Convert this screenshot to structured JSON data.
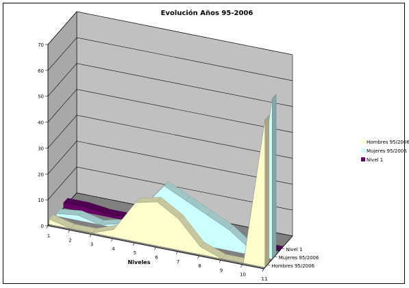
{
  "chart_data": {
    "type": "area",
    "title": "Evolución Años 95-2006",
    "xlabel": "Niveles",
    "ylabel": "",
    "ylim": [
      0,
      70
    ],
    "yticks": [
      0,
      10,
      20,
      30,
      40,
      50,
      60,
      70
    ],
    "categories": [
      "1",
      "2",
      "3",
      "4",
      "5",
      "6",
      "7",
      "8",
      "9",
      "10",
      "11"
    ],
    "series": [
      {
        "name": "Nivel 1",
        "color": "#660066",
        "values": [
          2,
          2,
          1,
          1,
          0,
          0,
          0,
          0,
          0,
          0,
          0
        ]
      },
      {
        "name": "Mujeres 95/2006",
        "color": "#ccffff",
        "values": [
          1,
          2,
          0,
          2,
          10,
          20,
          16,
          12,
          8,
          2,
          62
        ]
      },
      {
        "name": "Hombres 95/2006",
        "color": "#ffffcc",
        "values": [
          2,
          0,
          0,
          3,
          15,
          17,
          12,
          3,
          0,
          0,
          57
        ]
      }
    ],
    "legend": [
      {
        "name": "Hombres 95/2006",
        "color": "#ffffcc"
      },
      {
        "name": "Mujeres 95/2006",
        "color": "#ccffff"
      },
      {
        "name": "Nivel 1",
        "color": "#660066"
      }
    ],
    "depth_labels": [
      "Nivel 1",
      "Mujeres 95/2006",
      "Hombres 95/2006"
    ],
    "grid": true,
    "legend_position": "right",
    "wall_color": "#c0c0c0"
  }
}
